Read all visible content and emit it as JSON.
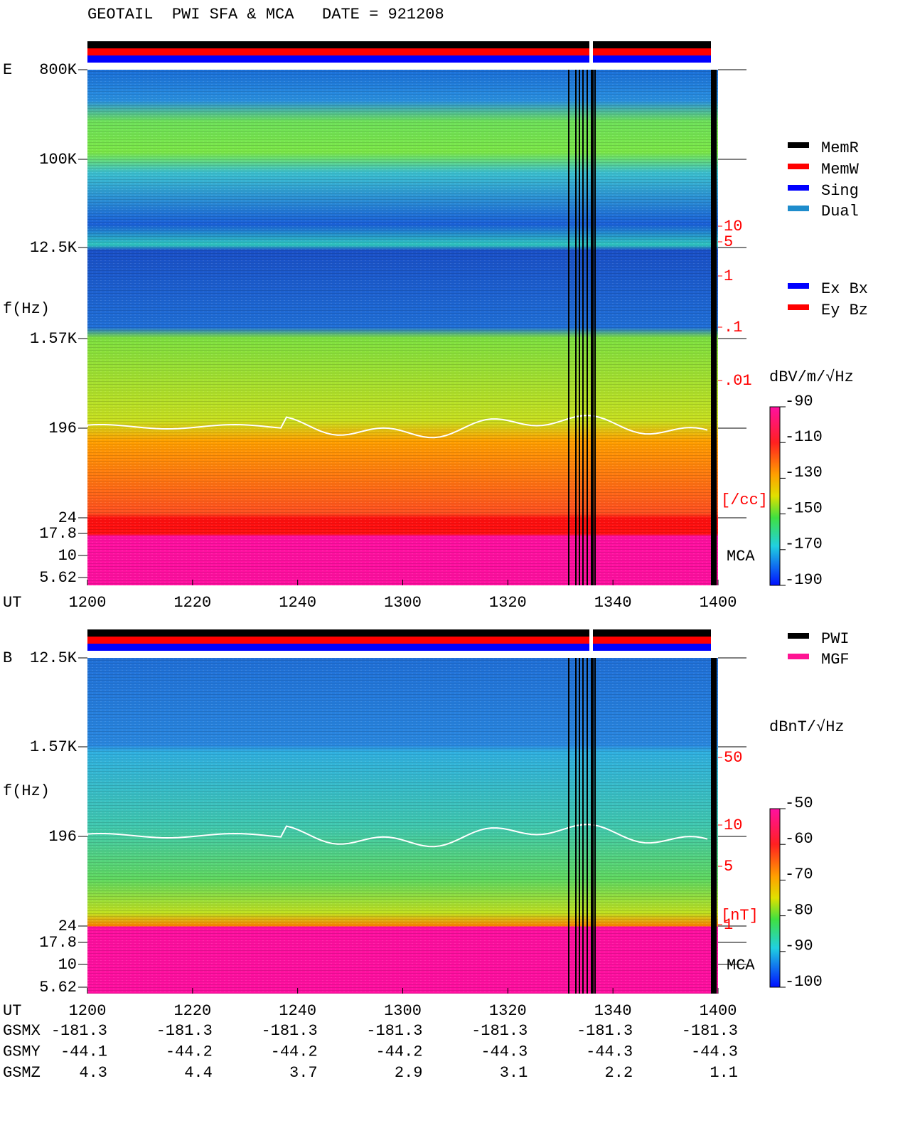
{
  "header": {
    "title": "GEOTAIL  PWI SFA & MCA   DATE = 921208"
  },
  "time_axis": {
    "label": "UT",
    "ticks": [
      "1200",
      "1220",
      "1240",
      "1300",
      "1320",
      "1340",
      "1400"
    ]
  },
  "panels": [
    {
      "label": "E",
      "y_axis_label": "f(Hz)",
      "freq_ticks": [
        "800K",
        "100K",
        "12.5K",
        "1.57K",
        "196",
        "24",
        "17.8",
        "10",
        "5.62"
      ],
      "density_ticks": [
        "10",
        "5",
        "1",
        ".1",
        ".01"
      ],
      "density_unit": "[/cc]",
      "mca_label": "MCA",
      "colorbar_title": "dBV/m/√Hz",
      "colorbar_ticks": [
        "-90",
        "-110",
        "-130",
        "-150",
        "-170",
        "-190"
      ],
      "legend": [
        {
          "label": "MemR",
          "color": "#000000"
        },
        {
          "label": "MemW",
          "color": "#ff0000"
        },
        {
          "label": "Sing",
          "color": "#0000ff"
        },
        {
          "label": "Dual",
          "color": "#1e8ccc"
        },
        {
          "label": "Ex Bx",
          "color": "#0000ff"
        },
        {
          "label": "Ey Bz",
          "color": "#ff0000"
        }
      ]
    },
    {
      "label": "B",
      "y_axis_label": "f(Hz)",
      "freq_ticks": [
        "12.5K",
        "1.57K",
        "196",
        "24",
        "17.8",
        "10",
        "5.62"
      ],
      "density_ticks": [
        "50",
        "10",
        "5",
        "1"
      ],
      "density_unit": "[nT]",
      "mca_label": "MCA",
      "colorbar_title": "dBnT/√Hz",
      "colorbar_ticks": [
        "-50",
        "-60",
        "-70",
        "-80",
        "-90",
        "-100"
      ],
      "legend": [
        {
          "label": "PWI",
          "color": "#000000"
        },
        {
          "label": "MGF",
          "color": "#ff1493"
        }
      ]
    }
  ],
  "orbit": {
    "rows": [
      {
        "label": "GSMX",
        "values": [
          "-181.3",
          "-181.3",
          "-181.3",
          "-181.3",
          "-181.3",
          "-181.3",
          "-181.3"
        ]
      },
      {
        "label": "GSMY",
        "values": [
          "-44.1",
          "-44.2",
          "-44.2",
          "-44.2",
          "-44.3",
          "-44.3",
          "-44.3"
        ]
      },
      {
        "label": "GSMZ",
        "values": [
          "4.3",
          "4.4",
          "3.7",
          "2.9",
          "3.1",
          "2.2",
          "1.1"
        ]
      }
    ]
  }
}
